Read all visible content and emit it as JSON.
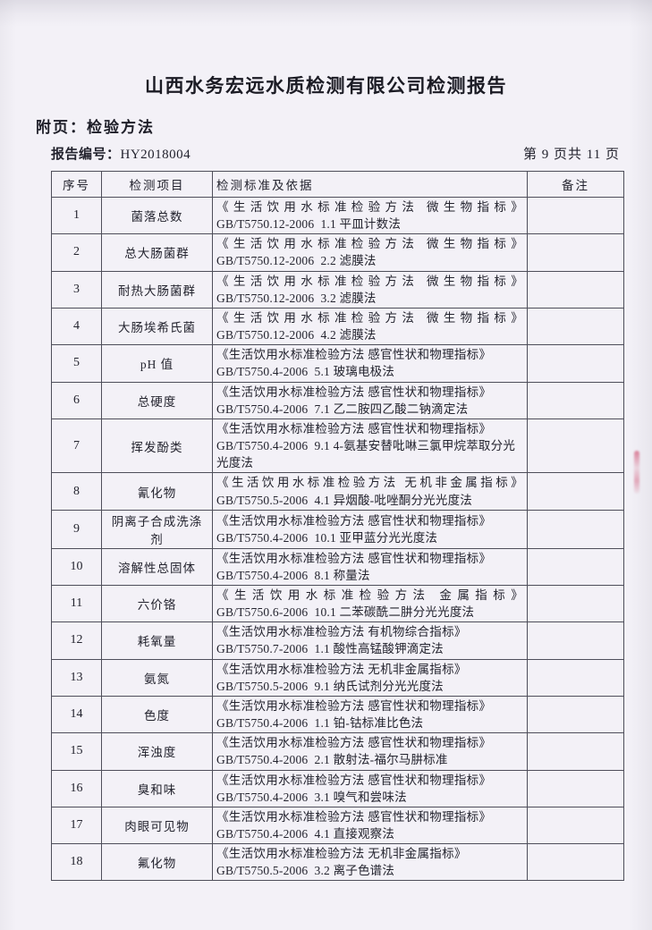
{
  "document": {
    "title": "山西水务宏远水质检测有限公司检测报告",
    "section_label": "附页：检验方法",
    "report_number_label": "报告编号：",
    "report_number_value": "HY2018004",
    "page_indicator": "第 9 页共 11 页"
  },
  "table": {
    "headers": [
      "序号",
      "检测项目",
      "检测标准及依据",
      "备注"
    ],
    "rows": [
      {
        "no": "1",
        "item": "菌落总数",
        "standard_title": "《生活饮用水标准检验方法 微生物指标》",
        "standard_method": "GB/T5750.12-2006  1.1 平皿计数法",
        "remark": ""
      },
      {
        "no": "2",
        "item": "总大肠菌群",
        "standard_title": "《生活饮用水标准检验方法 微生物指标》",
        "standard_method": "GB/T5750.12-2006  2.2 滤膜法",
        "remark": ""
      },
      {
        "no": "3",
        "item": "耐热大肠菌群",
        "standard_title": "《生活饮用水标准检验方法 微生物指标》",
        "standard_method": "GB/T5750.12-2006  3.2 滤膜法",
        "remark": ""
      },
      {
        "no": "4",
        "item": "大肠埃希氏菌",
        "standard_title": "《生活饮用水标准检验方法 微生物指标》",
        "standard_method": "GB/T5750.12-2006  4.2 滤膜法",
        "remark": ""
      },
      {
        "no": "5",
        "item": "pH 值",
        "standard_title": "《生活饮用水标准检验方法 感官性状和物理指标》",
        "standard_method": "GB/T5750.4-2006  5.1 玻璃电极法",
        "remark": ""
      },
      {
        "no": "6",
        "item": "总硬度",
        "standard_title": "《生活饮用水标准检验方法 感官性状和物理指标》",
        "standard_method": "GB/T5750.4-2006  7.1 乙二胺四乙酸二钠滴定法",
        "remark": ""
      },
      {
        "no": "7",
        "item": "挥发酚类",
        "standard_title": "《生活饮用水标准检验方法 感官性状和物理指标》",
        "standard_method": "GB/T5750.4-2006  9.1 4-氨基安替吡啉三氯甲烷萃取分光光度法",
        "remark": ""
      },
      {
        "no": "8",
        "item": "氰化物",
        "standard_title": "《生活饮用水标准检验方法 无机非金属指标》",
        "standard_method": "GB/T5750.5-2006  4.1 异烟酸-吡唑酮分光光度法",
        "remark": ""
      },
      {
        "no": "9",
        "item": "阴离子合成洗涤剂",
        "standard_title": "《生活饮用水标准检验方法 感官性状和物理指标》",
        "standard_method": "GB/T5750.4-2006  10.1 亚甲蓝分光光度法",
        "remark": ""
      },
      {
        "no": "10",
        "item": "溶解性总固体",
        "standard_title": "《生活饮用水标准检验方法 感官性状和物理指标》",
        "standard_method": "GB/T5750.4-2006  8.1 称量法",
        "remark": ""
      },
      {
        "no": "11",
        "item": "六价铬",
        "standard_title": "《生活饮用水标准检验方法 金属指标》",
        "standard_method": "GB/T5750.6-2006  10.1 二苯碳酰二肼分光光度法",
        "remark": ""
      },
      {
        "no": "12",
        "item": "耗氧量",
        "standard_title": "《生活饮用水标准检验方法 有机物综合指标》",
        "standard_method": "GB/T5750.7-2006  1.1 酸性高锰酸钾滴定法",
        "remark": ""
      },
      {
        "no": "13",
        "item": "氨氮",
        "standard_title": "《生活饮用水标准检验方法 无机非金属指标》",
        "standard_method": "GB/T5750.5-2006  9.1 纳氏试剂分光光度法",
        "remark": ""
      },
      {
        "no": "14",
        "item": "色度",
        "standard_title": "《生活饮用水标准检验方法 感官性状和物理指标》",
        "standard_method": "GB/T5750.4-2006  1.1 铂-钴标准比色法",
        "remark": ""
      },
      {
        "no": "15",
        "item": "浑浊度",
        "standard_title": "《生活饮用水标准检验方法 感官性状和物理指标》",
        "standard_method": "GB/T5750.4-2006  2.1 散射法-福尔马肼标准",
        "remark": ""
      },
      {
        "no": "16",
        "item": "臭和味",
        "standard_title": "《生活饮用水标准检验方法 感官性状和物理指标》",
        "standard_method": "GB/T5750.4-2006  3.1 嗅气和尝味法",
        "remark": ""
      },
      {
        "no": "17",
        "item": "肉眼可见物",
        "standard_title": "《生活饮用水标准检验方法 感官性状和物理指标》",
        "standard_method": "GB/T5750.4-2006  4.1 直接观察法",
        "remark": ""
      },
      {
        "no": "18",
        "item": "氟化物",
        "standard_title": "《生活饮用水标准检验方法 无机非金属指标》",
        "standard_method": "GB/T5750.5-2006  3.2 离子色谱法",
        "remark": ""
      }
    ]
  }
}
